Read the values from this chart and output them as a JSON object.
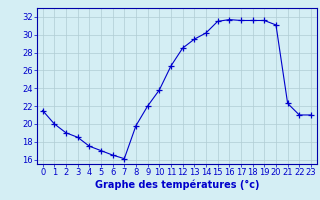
{
  "x": [
    0,
    1,
    2,
    3,
    4,
    5,
    6,
    7,
    8,
    9,
    10,
    11,
    12,
    13,
    14,
    15,
    16,
    17,
    18,
    19,
    20,
    21,
    22,
    23
  ],
  "y": [
    21.5,
    20.0,
    19.0,
    18.5,
    17.5,
    17.0,
    16.5,
    16.1,
    19.8,
    22.0,
    23.8,
    26.5,
    28.5,
    29.5,
    30.2,
    31.5,
    31.7,
    31.6,
    31.6,
    31.6,
    31.1,
    22.3,
    21.0,
    21.0
  ],
  "xlabel": "Graphe des températures (°c)",
  "ylabel_ticks": [
    16,
    18,
    20,
    22,
    24,
    26,
    28,
    30,
    32
  ],
  "xlim": [
    -0.5,
    23.5
  ],
  "ylim": [
    15.5,
    33.0
  ],
  "line_color": "#0000cc",
  "marker": "+",
  "marker_size": 4,
  "bg_color": "#d4eef4",
  "grid_color": "#b0ccd4",
  "axis_color": "#0000aa",
  "label_color": "#0000cc",
  "title_color": "#0000cc",
  "xlabel_fontsize": 7,
  "tick_fontsize": 6
}
